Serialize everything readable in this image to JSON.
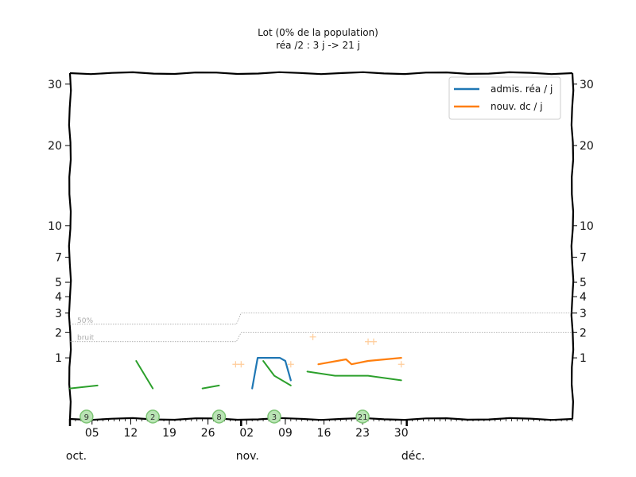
{
  "chart_data": {
    "type": "line",
    "title": "Lot (0% de la population)",
    "subtitle": "réa /2 : 3 j -> 21 j",
    "x_dates": {
      "start": "2020-10-01",
      "end": "2020-12-31",
      "tick_labels": [
        "05",
        "12",
        "19",
        "26",
        "02",
        "09",
        "16",
        "23",
        "30"
      ],
      "tick_dates": [
        "2020-10-05",
        "2020-10-12",
        "2020-10-19",
        "2020-10-26",
        "2020-11-02",
        "2020-11-09",
        "2020-11-16",
        "2020-11-23",
        "2020-11-30"
      ],
      "month_labels": [
        {
          "label": "oct.",
          "date": "2020-10-01"
        },
        {
          "label": "nov.",
          "date": "2020-11-01"
        },
        {
          "label": "déc.",
          "date": "2020-12-01"
        }
      ]
    },
    "y_axis": {
      "scale": "sqrt",
      "range": [
        0,
        32
      ],
      "ticks": [
        1,
        2,
        3,
        4,
        5,
        7,
        10,
        20,
        30
      ],
      "tick_labels": [
        "1",
        "2",
        "3",
        "4",
        "5",
        "7",
        "10",
        "20",
        "30"
      ]
    },
    "legend": {
      "placement": "top-right",
      "entries": [
        {
          "label": "admis. réa / j",
          "color": "#1f77b4"
        },
        {
          "label": "nouv. dc / j",
          "color": "#ff7f0e"
        }
      ]
    },
    "series": [
      {
        "name": "admis. réa / j",
        "color": "#1f77b4",
        "points": [
          {
            "date": "2020-11-03",
            "y": 0.25
          },
          {
            "date": "2020-11-04",
            "y": 1.0
          },
          {
            "date": "2020-11-08",
            "y": 1.0
          },
          {
            "date": "2020-11-09",
            "y": 0.9
          },
          {
            "date": "2020-11-10",
            "y": 0.4
          }
        ]
      },
      {
        "name": "nouv. dc / j",
        "color": "#ff7f0e",
        "points": [
          {
            "date": "2020-11-15",
            "y": 0.8
          },
          {
            "date": "2020-11-20",
            "y": 0.95
          },
          {
            "date": "2020-11-21",
            "y": 0.8
          },
          {
            "date": "2020-11-24",
            "y": 0.9
          },
          {
            "date": "2020-11-30",
            "y": 1.0
          }
        ]
      }
    ],
    "green_segments": [
      [
        {
          "date": "2020-10-01",
          "y": 0.25
        },
        {
          "date": "2020-10-06",
          "y": 0.3
        }
      ],
      [
        {
          "date": "2020-10-13",
          "y": 0.9
        },
        {
          "date": "2020-10-16",
          "y": 0.25
        }
      ],
      [
        {
          "date": "2020-10-25",
          "y": 0.25
        },
        {
          "date": "2020-10-28",
          "y": 0.3
        }
      ],
      [
        {
          "date": "2020-11-05",
          "y": 0.9
        },
        {
          "date": "2020-11-07",
          "y": 0.5
        },
        {
          "date": "2020-11-10",
          "y": 0.3
        }
      ],
      [
        {
          "date": "2020-11-13",
          "y": 0.6
        },
        {
          "date": "2020-11-18",
          "y": 0.5
        },
        {
          "date": "2020-11-24",
          "y": 0.5
        },
        {
          "date": "2020-11-30",
          "y": 0.4
        }
      ]
    ],
    "markers": [
      {
        "label": "9",
        "date": "2020-10-04"
      },
      {
        "label": "2",
        "date": "2020-10-16"
      },
      {
        "label": "8",
        "date": "2020-10-28"
      },
      {
        "label": "3",
        "date": "2020-11-07"
      },
      {
        "label": "21",
        "date": "2020-11-23"
      }
    ],
    "reference_lines": [
      {
        "label": "50%",
        "y_before": 2.4,
        "y_after": 3.0,
        "step_date": "2020-11-01"
      },
      {
        "label": "bruit",
        "y_before": 1.6,
        "y_after": 2.0,
        "step_date": "2020-11-01"
      }
    ],
    "faint_cross_markers": [
      {
        "date": "2020-10-31",
        "y": 0.8
      },
      {
        "date": "2020-11-01",
        "y": 0.8
      },
      {
        "date": "2020-11-10",
        "y": 0.8
      },
      {
        "date": "2020-11-14",
        "y": 1.8
      },
      {
        "date": "2020-11-24",
        "y": 1.6
      },
      {
        "date": "2020-11-25",
        "y": 1.6
      },
      {
        "date": "2020-11-30",
        "y": 0.8
      }
    ],
    "grid": false
  }
}
